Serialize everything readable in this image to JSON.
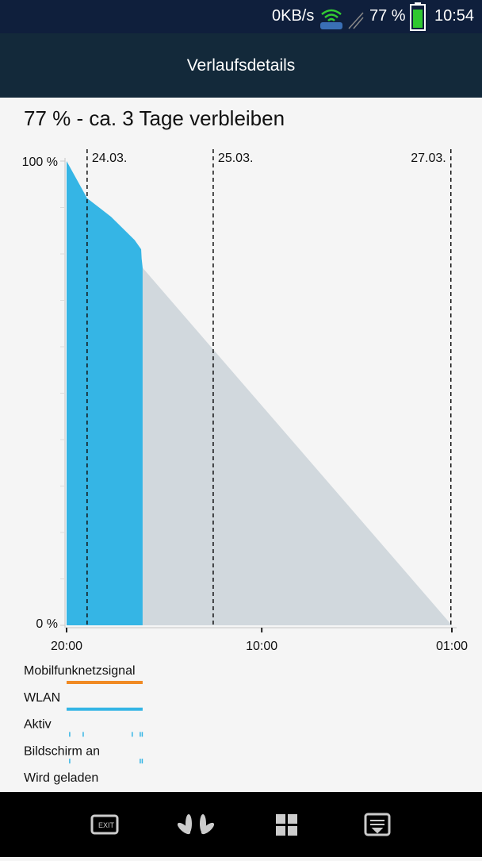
{
  "status_bar": {
    "network_speed": "0KB/s",
    "battery": "77 %",
    "time": "10:54"
  },
  "header": {
    "title": "Verlaufsdetails"
  },
  "summary": "77 % - ca. 3 Tage verbleiben",
  "chart_data": {
    "type": "area",
    "xlim": [
      0,
      77
    ],
    "ylim": [
      0,
      100
    ],
    "xticks": [
      {
        "value": 0,
        "label": "20:00"
      },
      {
        "value": 39,
        "label": "10:00"
      },
      {
        "value": 77,
        "label": "01:00"
      }
    ],
    "yticks": [
      {
        "value": 0,
        "label": "0 %"
      },
      {
        "value": 100,
        "label": "100 %"
      }
    ],
    "minor_yticks": [
      10,
      20,
      30,
      40,
      50,
      60,
      70,
      80,
      90
    ],
    "date_markers": [
      {
        "value": 4.1,
        "label": "24.03."
      },
      {
        "value": 29.3,
        "label": "25.03."
      },
      {
        "value": 76.8,
        "label": "27.03."
      }
    ],
    "series": [
      {
        "color": "#35b5e5",
        "x": [
          0,
          4.1,
          8.9,
          13.6,
          14.9,
          15.0,
          15.2
        ],
        "values": [
          100,
          92,
          88,
          83,
          81,
          79,
          77
        ]
      },
      {
        "color": "#d1d8dd",
        "x": [
          15.2,
          77
        ],
        "values": [
          77,
          0
        ]
      }
    ],
    "tracks": [
      {
        "name": "Mobilfunknetzsignal",
        "color": "#f08a24",
        "spans": [
          [
            0,
            15.2
          ]
        ]
      },
      {
        "name": "WLAN",
        "color": "#35b5e5",
        "spans": [
          [
            0,
            15.2
          ]
        ]
      },
      {
        "name": "Aktiv",
        "color": "#35b5e5",
        "spans": [
          [
            0.5,
            0.7
          ],
          [
            3.2,
            3.4
          ],
          [
            13.0,
            13.2
          ],
          [
            14.6,
            14.8
          ],
          [
            15.0,
            15.2
          ]
        ]
      },
      {
        "name": "Bildschirm an",
        "color": "#35b5e5",
        "spans": [
          [
            0.5,
            0.7
          ],
          [
            14.6,
            14.8
          ],
          [
            15.0,
            15.2
          ]
        ]
      },
      {
        "name": "Wird geladen",
        "color": "#35b5e5",
        "spans": []
      }
    ]
  }
}
